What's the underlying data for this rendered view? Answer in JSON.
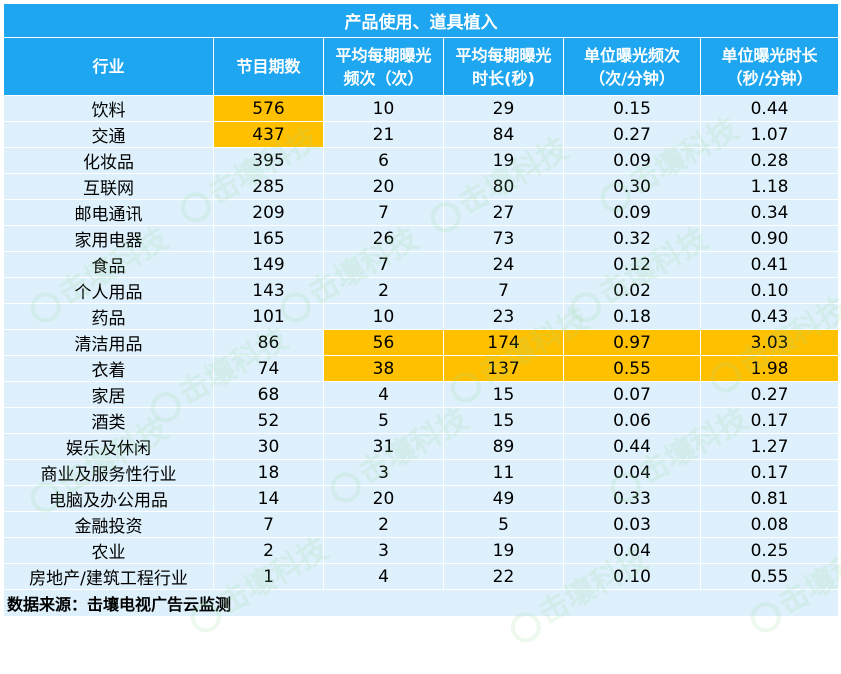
{
  "table": {
    "title": "产品使用、道具植入",
    "headers": [
      [
        "行业"
      ],
      [
        "节目期数"
      ],
      [
        "平均每期曝光",
        "频次（次）"
      ],
      [
        "平均每期曝光",
        "时长(秒)"
      ],
      [
        "单位曝光频次",
        "（次/分钟）"
      ],
      [
        "单位曝光时长",
        "（秒/分钟）"
      ]
    ],
    "rows": [
      {
        "industry": "饮料",
        "episodes": "576",
        "freq": "10",
        "duration": "29",
        "unit_freq": "0.15",
        "unit_duration": "0.44"
      },
      {
        "industry": "交通",
        "episodes": "437",
        "freq": "21",
        "duration": "84",
        "unit_freq": "0.27",
        "unit_duration": "1.07"
      },
      {
        "industry": "化妆品",
        "episodes": "395",
        "freq": "6",
        "duration": "19",
        "unit_freq": "0.09",
        "unit_duration": "0.28"
      },
      {
        "industry": "互联网",
        "episodes": "285",
        "freq": "20",
        "duration": "80",
        "unit_freq": "0.30",
        "unit_duration": "1.18"
      },
      {
        "industry": "邮电通讯",
        "episodes": "209",
        "freq": "7",
        "duration": "27",
        "unit_freq": "0.09",
        "unit_duration": "0.34"
      },
      {
        "industry": "家用电器",
        "episodes": "165",
        "freq": "26",
        "duration": "73",
        "unit_freq": "0.32",
        "unit_duration": "0.90"
      },
      {
        "industry": "食品",
        "episodes": "149",
        "freq": "7",
        "duration": "24",
        "unit_freq": "0.12",
        "unit_duration": "0.41"
      },
      {
        "industry": "个人用品",
        "episodes": "143",
        "freq": "2",
        "duration": "7",
        "unit_freq": "0.02",
        "unit_duration": "0.10"
      },
      {
        "industry": "药品",
        "episodes": "101",
        "freq": "10",
        "duration": "23",
        "unit_freq": "0.18",
        "unit_duration": "0.43"
      },
      {
        "industry": "清洁用品",
        "episodes": "86",
        "freq": "56",
        "duration": "174",
        "unit_freq": "0.97",
        "unit_duration": "3.03"
      },
      {
        "industry": "衣着",
        "episodes": "74",
        "freq": "38",
        "duration": "137",
        "unit_freq": "0.55",
        "unit_duration": "1.98"
      },
      {
        "industry": "家居",
        "episodes": "68",
        "freq": "4",
        "duration": "15",
        "unit_freq": "0.07",
        "unit_duration": "0.27"
      },
      {
        "industry": "酒类",
        "episodes": "52",
        "freq": "5",
        "duration": "15",
        "unit_freq": "0.06",
        "unit_duration": "0.17"
      },
      {
        "industry": "娱乐及休闲",
        "episodes": "30",
        "freq": "31",
        "duration": "89",
        "unit_freq": "0.44",
        "unit_duration": "1.27"
      },
      {
        "industry": "商业及服务性行业",
        "episodes": "18",
        "freq": "3",
        "duration": "11",
        "unit_freq": "0.04",
        "unit_duration": "0.17"
      },
      {
        "industry": "电脑及办公用品",
        "episodes": "14",
        "freq": "20",
        "duration": "49",
        "unit_freq": "0.33",
        "unit_duration": "0.81"
      },
      {
        "industry": "金融投资",
        "episodes": "7",
        "freq": "2",
        "duration": "5",
        "unit_freq": "0.03",
        "unit_duration": "0.08"
      },
      {
        "industry": "农业",
        "episodes": "2",
        "freq": "3",
        "duration": "19",
        "unit_freq": "0.04",
        "unit_duration": "0.25"
      },
      {
        "industry": "房地产/建筑工程行业",
        "episodes": "1",
        "freq": "4",
        "duration": "22",
        "unit_freq": "0.10",
        "unit_duration": "0.55"
      }
    ],
    "highlights": {
      "episodes_rows": [
        0,
        1
      ],
      "metric_rows": [
        9,
        10
      ]
    },
    "source": "数据来源：击壤电视广告云监测"
  },
  "watermark": {
    "text": "击壤科技",
    "icon": "leaf-circle-logo-icon"
  },
  "colors": {
    "header_bg": "#1ea6f0",
    "row_bg": "#ddf0fb",
    "highlight": "#ffc000",
    "header_text": "#ffffff"
  }
}
